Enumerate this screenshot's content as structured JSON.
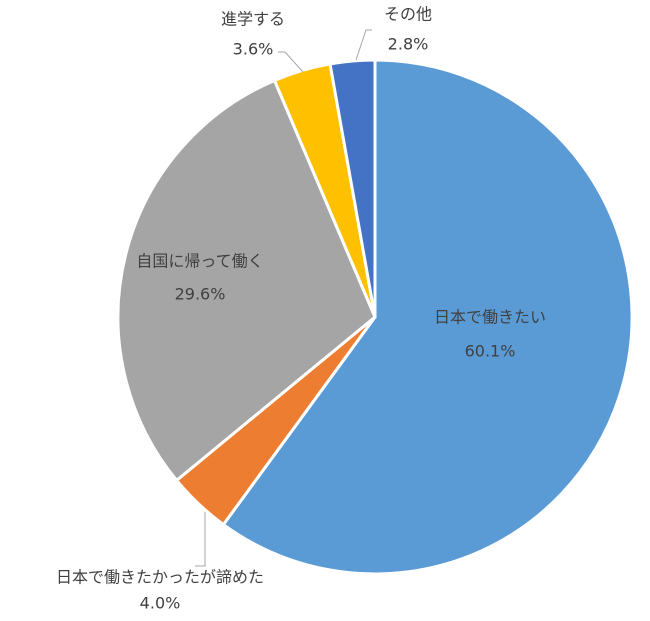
{
  "chart_data": {
    "type": "pie",
    "categories": [
      "日本で働きたい",
      "日本で働きたかったが諦めた",
      "自国に帰って働く",
      "進学する",
      "その他"
    ],
    "values": [
      60.1,
      4.0,
      29.6,
      3.6,
      2.8
    ],
    "value_labels": [
      "60.1%",
      "4.0%",
      "29.6%",
      "3.6%",
      "2.8%"
    ],
    "colors": [
      "#5b9bd5",
      "#ed7d31",
      "#a5a5a5",
      "#ffc000",
      "#4472c4"
    ]
  }
}
